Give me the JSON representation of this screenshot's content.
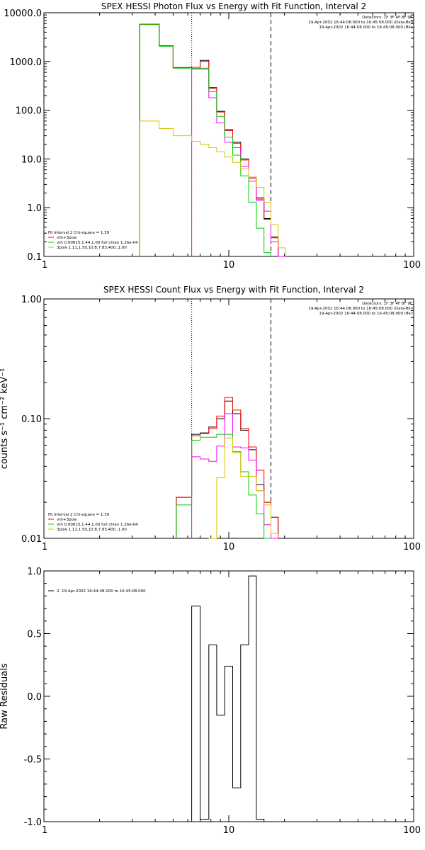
{
  "chart_data": [
    {
      "type": "line",
      "title": "SPEX HESSI Photon Flux vs Energy with Fit Function, Interval 2",
      "xlabel": "",
      "ylabel": "",
      "xscale": "log",
      "yscale": "log",
      "xlim": [
        1,
        100
      ],
      "ylim": [
        0.1,
        10000
      ],
      "x_tick_labels": [
        "1",
        "10",
        "100"
      ],
      "y_tick_labels": [
        "0.1",
        "1.0",
        "10.0",
        "100.0",
        "1000.0",
        "10000.0"
      ],
      "vlines": [
        {
          "x": 6.3,
          "style": "dotted"
        },
        {
          "x": 16.9,
          "style": "dashed"
        }
      ],
      "info_lines": [
        "Detectors: 1F 3F 4F 8F 9F",
        "19-Apr-2002 16:44:08.000 to 16:45:08.000 (Data-Bk)",
        "19-Apr-2002 16:44:08.000 to 16:45:08.000 (Bk)"
      ],
      "legend_lines": [
        "Fit Interval 2   Chi-square = 1.39",
        "vth+3pow",
        "vth 0.00615,1.44,1.00  full chian 1.26e-04",
        "3pow 1.11,1.50,10.8,7.83,400.,1.00"
      ],
      "edges": [
        3.3,
        4.2,
        5.0,
        6.3,
        7.0,
        7.8,
        8.6,
        9.5,
        10.5,
        11.6,
        12.8,
        14.1,
        15.5,
        16.9,
        18.5,
        20.2
      ],
      "series": [
        {
          "color": "#000000",
          "values": [
            5800,
            2100,
            750,
            760,
            1050,
            290,
            95,
            40,
            22,
            10,
            4.2,
            1.6,
            0.6,
            0.25,
            0.1
          ]
        },
        {
          "color": "#ff0000",
          "values": [
            5800,
            2100,
            750,
            760,
            1000,
            280,
            92,
            38,
            21,
            9.5,
            4.0,
            1.5,
            0.58,
            0.24,
            0.1
          ]
        },
        {
          "color": "#ff00ff",
          "values": [
            null,
            null,
            null,
            700,
            700,
            180,
            55,
            22,
            17,
            7.0,
            3.5,
            1.4,
            0.85,
            0.2,
            0.1
          ]
        },
        {
          "color": "#00cc00",
          "values": [
            5700,
            2050,
            730,
            720,
            730,
            240,
            75,
            28,
            12,
            4.5,
            1.3,
            0.38,
            0.12,
            null,
            null
          ]
        },
        {
          "color": "#d6c400",
          "values": [
            60,
            42,
            30,
            23,
            20,
            17,
            14,
            11,
            8.5,
            6.3,
            4.2,
            2.6,
            1.3,
            0.45,
            0.15
          ]
        }
      ]
    },
    {
      "type": "line",
      "title": "SPEX HESSI Count Flux vs Energy with Fit Function, Interval 2",
      "xlabel": "",
      "ylabel": "counts s⁻¹ cm⁻² keV⁻¹",
      "xscale": "log",
      "yscale": "log",
      "xlim": [
        1,
        100
      ],
      "ylim": [
        0.01,
        1.0
      ],
      "x_tick_labels": [
        "1",
        "10",
        "100"
      ],
      "y_tick_labels": [
        "0.01",
        "0.10",
        "1.00"
      ],
      "vlines": [
        {
          "x": 6.3,
          "style": "dotted"
        },
        {
          "x": 16.9,
          "style": "dashed"
        }
      ],
      "info_lines": [
        "Detectors: 1F 3F 4F 8F 9F",
        "19-Apr-2002 16:44:08.000 to 16:45:08.000 (Data-Bk)",
        "19-Apr-2002 16:44:08.000 to 16:45:08.000 (Bk)"
      ],
      "legend_lines": [
        "Fit Interval 2   Chi-square = 1.39",
        "vth+3pow",
        "vth 0.00615,1.44,1.00  full chian 1.26e-04",
        "3pow 1.11,1.50,10.8,7.83,400.,1.00"
      ],
      "edges": [
        5.2,
        6.3,
        7.0,
        7.8,
        8.6,
        9.5,
        10.5,
        11.6,
        12.8,
        14.1,
        15.5,
        16.9,
        18.5
      ],
      "series": [
        {
          "color": "#000000",
          "values": [
            0.022,
            0.074,
            0.076,
            0.085,
            0.1,
            0.14,
            0.11,
            0.08,
            0.055,
            0.028,
            0.02,
            0.015
          ]
        },
        {
          "color": "#ff0000",
          "values": [
            0.022,
            0.072,
            0.075,
            0.083,
            0.105,
            0.15,
            0.118,
            0.083,
            0.058,
            0.037,
            0.02,
            0.015
          ]
        },
        {
          "color": "#ff00ff",
          "values": [
            null,
            0.048,
            0.046,
            0.044,
            0.059,
            0.11,
            0.058,
            0.057,
            0.045,
            0.025,
            0.013,
            0.01
          ]
        },
        {
          "color": "#00cc00",
          "values": [
            0.019,
            0.066,
            0.07,
            0.07,
            0.074,
            0.074,
            0.053,
            0.036,
            0.023,
            0.016,
            0.01,
            null
          ]
        },
        {
          "color": "#d6c400",
          "values": [
            null,
            null,
            null,
            0.01,
            0.032,
            0.069,
            0.052,
            0.033,
            0.033,
            0.025,
            0.019,
            0.011
          ]
        }
      ]
    },
    {
      "type": "line",
      "title": "",
      "xlabel": "",
      "ylabel": "Raw Residuals",
      "xscale": "log",
      "yscale": "linear",
      "xlim": [
        1,
        100
      ],
      "ylim": [
        -1.0,
        1.0
      ],
      "x_tick_labels": [
        "1",
        "10",
        "100"
      ],
      "y_tick_labels": [
        "-1.0",
        "-0.5",
        "0.0",
        "0.5",
        "1.0"
      ],
      "legend_lines": [
        "2. 19-Apr-2002 16:44:08.000 to 16:45:08.000"
      ],
      "edges": [
        6.3,
        7.0,
        7.8,
        8.6,
        9.5,
        10.5,
        11.6,
        12.8,
        14.1,
        15.5
      ],
      "series": [
        {
          "color": "#000000",
          "values": [
            0.72,
            -0.98,
            0.41,
            -0.15,
            0.24,
            -0.73,
            0.41,
            0.96,
            -0.98
          ]
        }
      ]
    }
  ]
}
